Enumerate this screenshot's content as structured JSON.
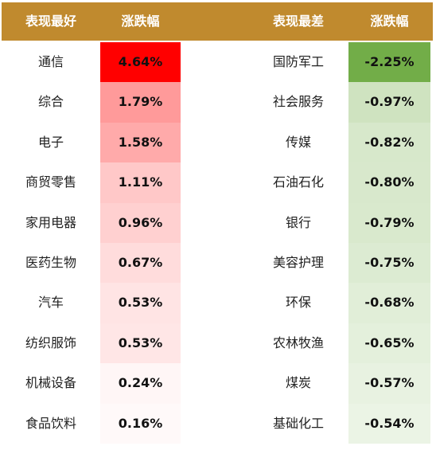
{
  "header": {
    "best_label": "表现最好",
    "best_change": "涨跌幅",
    "worst_label": "表现最差",
    "worst_change": "涨跌幅"
  },
  "colors": {
    "header_bg": "#c08a2e",
    "best_shades": [
      "#ff0000",
      "#ff9a9a",
      "#ffaaaa",
      "#ffc8c8",
      "#ffd0d0",
      "#ffdcdc",
      "#ffe4e4",
      "#ffe6e6",
      "#fff6f6",
      "#fff9f9"
    ],
    "worst_shades": [
      "#72ad48",
      "#cfe3c0",
      "#d7e8cb",
      "#d8e8cc",
      "#d9e9cd",
      "#dcebd2",
      "#e1eed8",
      "#e4f0dc",
      "#e8f2e1",
      "#ebf4e5"
    ]
  },
  "rows": [
    {
      "best_name": "通信",
      "best_value": "4.64%",
      "worst_name": "国防军工",
      "worst_value": "-2.25%"
    },
    {
      "best_name": "综合",
      "best_value": "1.79%",
      "worst_name": "社会服务",
      "worst_value": "-0.97%"
    },
    {
      "best_name": "电子",
      "best_value": "1.58%",
      "worst_name": "传媒",
      "worst_value": "-0.82%"
    },
    {
      "best_name": "商贸零售",
      "best_value": "1.11%",
      "worst_name": "石油石化",
      "worst_value": "-0.80%"
    },
    {
      "best_name": "家用电器",
      "best_value": "0.96%",
      "worst_name": "银行",
      "worst_value": "-0.79%"
    },
    {
      "best_name": "医药生物",
      "best_value": "0.67%",
      "worst_name": "美容护理",
      "worst_value": "-0.75%"
    },
    {
      "best_name": "汽车",
      "best_value": "0.53%",
      "worst_name": "环保",
      "worst_value": "-0.68%"
    },
    {
      "best_name": "纺织服饰",
      "best_value": "0.53%",
      "worst_name": "农林牧渔",
      "worst_value": "-0.65%"
    },
    {
      "best_name": "机械设备",
      "best_value": "0.24%",
      "worst_name": "煤炭",
      "worst_value": "-0.57%"
    },
    {
      "best_name": "食品饮料",
      "best_value": "0.16%",
      "worst_name": "基础化工",
      "worst_value": "-0.54%"
    }
  ]
}
